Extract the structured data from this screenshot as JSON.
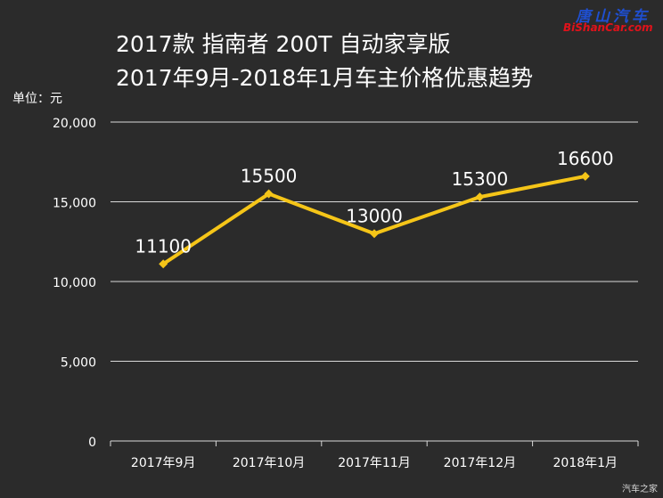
{
  "chart_data": {
    "type": "line",
    "title": "2017款 指南者 200T 自动家享版",
    "subtitle": "2017年9月-2018年1月车主价格优惠趋势",
    "ylabel": "单位：元",
    "xlabel": "",
    "categories": [
      "2017年9月",
      "2017年10月",
      "2017年11月",
      "2017年12月",
      "2018年1月"
    ],
    "series": [
      {
        "values": [
          11100,
          15500,
          13000,
          15300,
          16600
        ]
      }
    ],
    "data_labels": [
      "11100",
      "15500",
      "13000",
      "15300",
      "16600"
    ],
    "ylim": [
      0,
      20000
    ],
    "yticks": [
      0,
      5000,
      10000,
      15000,
      20000
    ],
    "ytick_labels": [
      "0",
      "5,000",
      "10,000",
      "15,000",
      "20,000"
    ],
    "grid": true,
    "legend": "none",
    "line_color": "#f5c518",
    "grid_color": "#d9d9d9",
    "background": "#2b2b2b"
  },
  "watermark": {
    "site_name": "唐山汽车",
    "site_url": "BiShanCar.com",
    "corner": "汽车之家"
  }
}
